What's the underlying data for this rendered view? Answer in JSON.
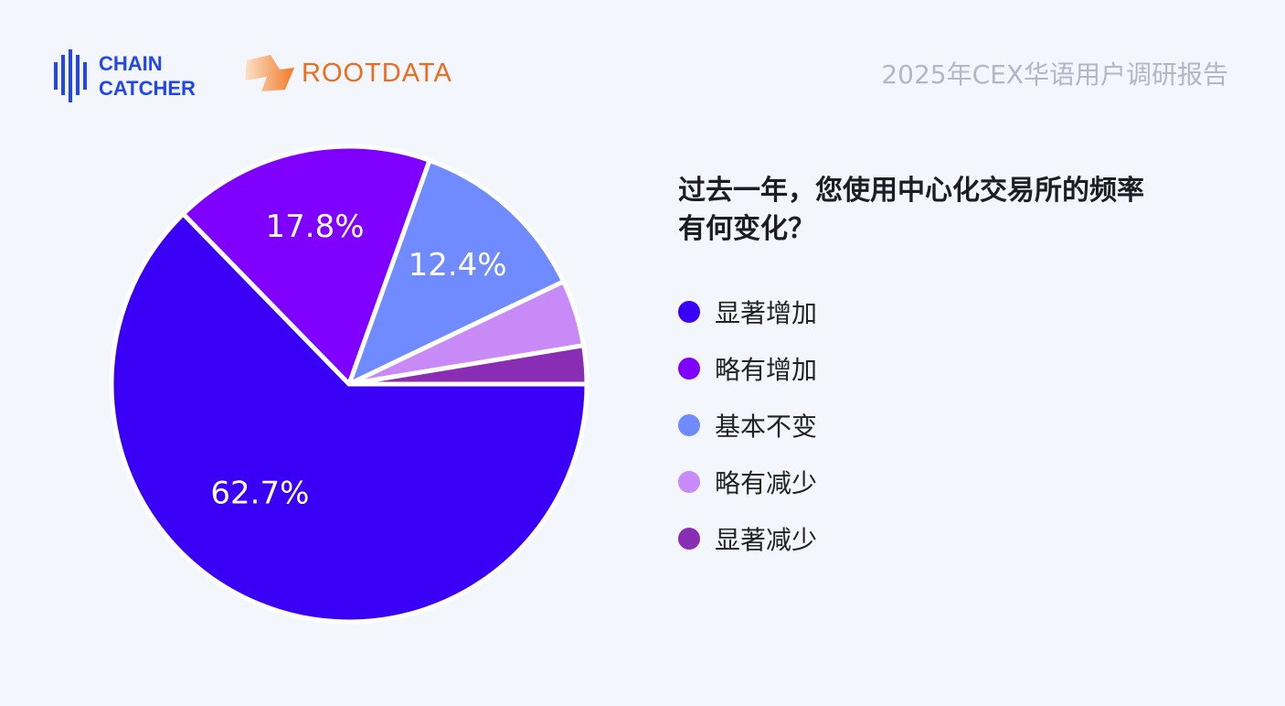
{
  "header": {
    "logo_chaincatcher": [
      "CHAIN",
      "CATCHER"
    ],
    "logo_rootdata": "ROOTDATA",
    "report_title": "2025年CEX华语用户调研报告"
  },
  "chart_data": {
    "type": "pie",
    "title": "过去一年，您使用中心化交易所的频率有何变化？",
    "title_lines": [
      "过去一年，您使用中心化交易所的频率",
      "有何变化？"
    ],
    "legend_position": "right",
    "slices": [
      {
        "label": "显著增加",
        "value": 62.7,
        "display": "62.7%",
        "color": "#3a00f5"
      },
      {
        "label": "略有增加",
        "value": 17.8,
        "display": "17.8%",
        "color": "#7f00ff"
      },
      {
        "label": "基本不变",
        "value": 12.4,
        "display": "12.4%",
        "color": "#6f8bff"
      },
      {
        "label": "略有减少",
        "value": 4.5,
        "display": "",
        "color": "#c78af6"
      },
      {
        "label": "显著减少",
        "value": 2.6,
        "display": "",
        "color": "#8a2db5"
      }
    ]
  }
}
